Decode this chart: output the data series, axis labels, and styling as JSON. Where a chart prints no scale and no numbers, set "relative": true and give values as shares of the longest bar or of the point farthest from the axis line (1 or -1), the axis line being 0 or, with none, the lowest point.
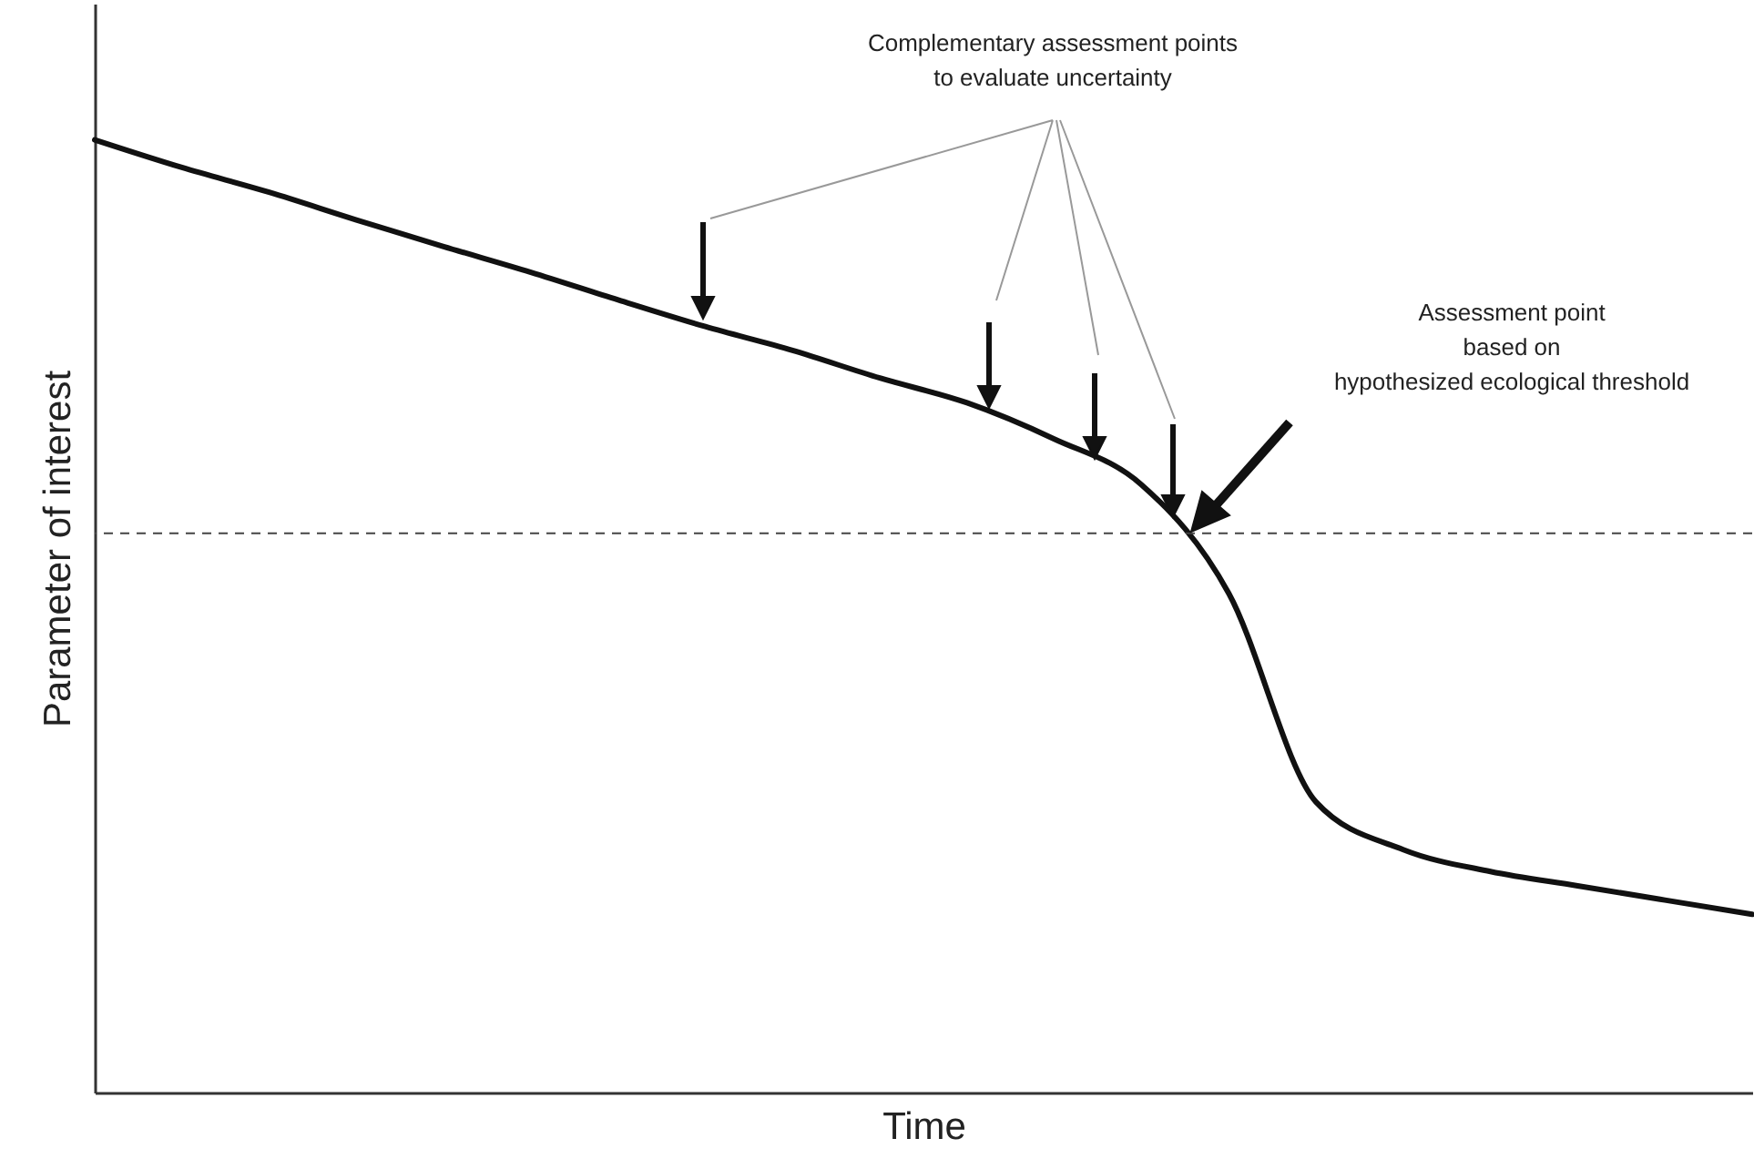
{
  "chart_data": {
    "type": "line",
    "relative": true,
    "xlabel": "Time",
    "ylabel": "Parameter of interest",
    "categories": [
      null,
      null,
      null,
      null,
      null,
      null,
      null,
      null,
      null,
      null,
      null,
      null,
      null,
      null,
      null,
      null,
      null,
      null,
      null,
      null
    ],
    "series": [
      {
        "color": "#111111",
        "values": [
          1.0,
          0.971,
          0.945,
          0.916,
          0.888,
          0.861,
          0.832,
          0.804,
          0.779,
          0.75,
          0.724,
          0.686,
          0.638,
          0.524,
          0.305,
          0.255,
          0.232,
          0.217,
          0.202,
          0.187
        ]
      }
    ],
    "marker": "none",
    "line_style": "solid",
    "grid": false,
    "ref_lines": [
      {
        "axis": "y",
        "value": 0.587,
        "color": "#444444",
        "line_style": "dashed"
      }
    ],
    "annotations": [
      "Complementary assessment points\nto evaluate uncertainty",
      "Assessment point\nbased on\nhypothesized ecological threshold"
    ]
  }
}
